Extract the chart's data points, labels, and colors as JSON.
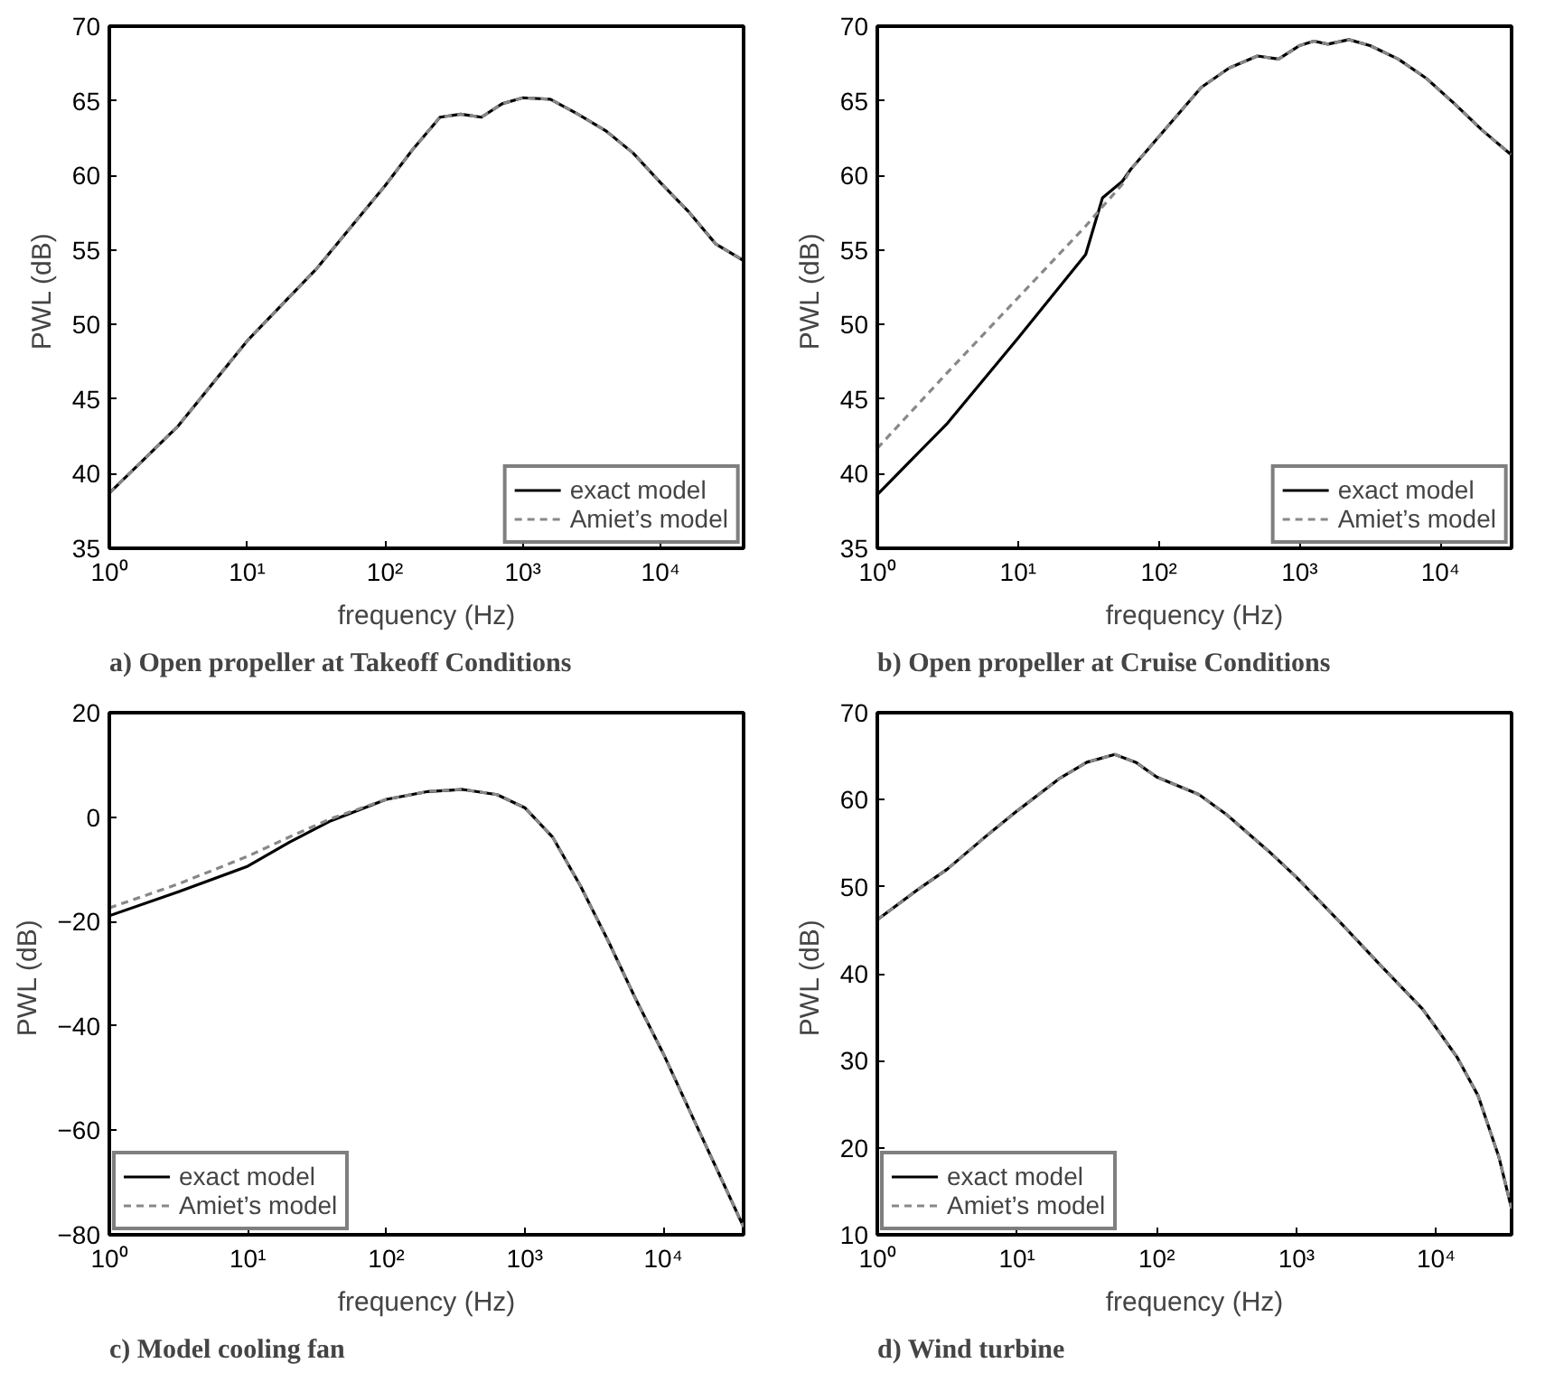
{
  "chart_data": [
    {
      "type": "line",
      "title": "a) Open propeller at Takeoff Conditions",
      "xlabel": "frequency (Hz)",
      "ylabel": "PWL  (dB)",
      "log": "x",
      "grid": false,
      "legend": "bottom right",
      "xlim": [
        1,
        40000
      ],
      "ylim": [
        35,
        70
      ],
      "yticks": [
        35,
        40,
        45,
        50,
        55,
        60,
        65,
        70
      ],
      "xticks": [
        {
          "value": 1,
          "label": "10⁰"
        },
        {
          "value": 10,
          "label": "10¹"
        },
        {
          "value": 100,
          "label": "10²"
        },
        {
          "value": 1000,
          "label": "10³"
        },
        {
          "value": 10000,
          "label": "10⁴"
        }
      ],
      "x": [
        1,
        3.16,
        10,
        31.6,
        100,
        158,
        251,
        355,
        501,
        708,
        1000,
        1585,
        2512,
        3981,
        6310,
        10000,
        15850,
        25120,
        39810
      ],
      "series": [
        {
          "name": "exact model",
          "color": "#000000",
          "line_style": "solid",
          "values": [
            38.7,
            43.2,
            48.9,
            53.7,
            59.3,
            61.7,
            63.9,
            64.1,
            63.9,
            64.8,
            65.2,
            65.1,
            64.1,
            63.0,
            61.5,
            59.5,
            57.6,
            55.4,
            54.3
          ]
        },
        {
          "name": "Amiet’s model",
          "color": "#888888",
          "line_style": "dashed",
          "values": [
            38.7,
            43.2,
            48.9,
            53.7,
            59.3,
            61.7,
            63.9,
            64.1,
            63.9,
            64.8,
            65.2,
            65.1,
            64.1,
            63.0,
            61.5,
            59.5,
            57.6,
            55.4,
            54.3
          ]
        }
      ]
    },
    {
      "type": "line",
      "title": "b) Open propeller at Cruise Conditions",
      "xlabel": "frequency (Hz)",
      "ylabel": "PWL  (dB)",
      "log": "x",
      "grid": false,
      "legend": "bottom right",
      "xlim": [
        1,
        32000
      ],
      "ylim": [
        35,
        70
      ],
      "yticks": [
        35,
        40,
        45,
        50,
        55,
        60,
        65,
        70
      ],
      "xticks": [
        {
          "value": 1,
          "label": "10⁰"
        },
        {
          "value": 10,
          "label": "10¹"
        },
        {
          "value": 100,
          "label": "10²"
        },
        {
          "value": 1000,
          "label": "10³"
        },
        {
          "value": 10000,
          "label": "10⁴"
        }
      ],
      "x": [
        1,
        3.16,
        10,
        30.2,
        39.8,
        55,
        63.1,
        100,
        200,
        316,
        501,
        708,
        1000,
        1259,
        1585,
        2239,
        3162,
        5012,
        7943,
        12590,
        19950,
        31620
      ],
      "series": [
        {
          "name": "exact model",
          "color": "#000000",
          "line_style": "solid",
          "values": [
            38.6,
            43.4,
            49.1,
            54.7,
            58.5,
            59.6,
            60.4,
            62.6,
            65.9,
            67.2,
            68.0,
            67.8,
            68.7,
            69.0,
            68.8,
            69.1,
            68.7,
            67.8,
            66.5,
            64.8,
            63.0,
            61.4
          ]
        },
        {
          "name": "Amiet’s model",
          "color": "#888888",
          "line_style": "dashed",
          "values": [
            41.7,
            46.8,
            51.8,
            56.6,
            57.9,
            59.4,
            60.4,
            62.6,
            65.9,
            67.2,
            68.0,
            67.8,
            68.7,
            69.0,
            68.8,
            69.1,
            68.7,
            67.8,
            66.5,
            64.8,
            63.0,
            61.4
          ]
        }
      ]
    },
    {
      "type": "line",
      "title": "c) Model cooling fan",
      "xlabel": "frequency (Hz)",
      "ylabel": "PWL  (dB)",
      "log": "x",
      "grid": false,
      "legend": "bottom left",
      "xlim": [
        1,
        38000
      ],
      "ylim": [
        -80,
        20
      ],
      "yticks": [
        {
          "value": -80,
          "label": "−80"
        },
        {
          "value": -60,
          "label": "−60"
        },
        {
          "value": -40,
          "label": "−40"
        },
        {
          "value": -20,
          "label": "−20"
        },
        0,
        20
      ],
      "xticks": [
        {
          "value": 1,
          "label": "10⁰"
        },
        {
          "value": 10,
          "label": "10¹"
        },
        {
          "value": 100,
          "label": "10²"
        },
        {
          "value": 1000,
          "label": "10³"
        },
        {
          "value": 10000,
          "label": "10⁴"
        }
      ],
      "x": [
        1,
        3.16,
        10,
        20,
        39.8,
        100,
        200,
        355,
        631,
        1000,
        1585,
        2512,
        3981,
        6310,
        10000,
        15850,
        25120,
        38000
      ],
      "series": [
        {
          "name": "exact model",
          "color": "#000000",
          "line_style": "solid",
          "values": [
            -18.9,
            -14.3,
            -9.4,
            -4.8,
            -0.7,
            3.4,
            4.9,
            5.3,
            4.3,
            1.8,
            -3.8,
            -13.1,
            -23.6,
            -34.8,
            -45.3,
            -56.8,
            -68.2,
            -78.5
          ]
        },
        {
          "name": "Amiet’s model",
          "color": "#888888",
          "line_style": "dashed",
          "values": [
            -17.4,
            -12.8,
            -7.5,
            -3.8,
            -0.3,
            3.4,
            4.9,
            5.3,
            4.3,
            1.8,
            -3.8,
            -13.1,
            -23.6,
            -34.8,
            -45.3,
            -56.8,
            -68.2,
            -78.5
          ]
        }
      ]
    },
    {
      "type": "line",
      "title": "d) Wind turbine",
      "xlabel": "frequency (Hz)",
      "ylabel": "PWL  (dB)",
      "log": "x",
      "grid": false,
      "legend": "bottom left",
      "xlim": [
        1,
        34670
      ],
      "ylim": [
        10,
        70
      ],
      "yticks": [
        10,
        20,
        30,
        40,
        50,
        60,
        70
      ],
      "xticks": [
        {
          "value": 1,
          "label": "10⁰"
        },
        {
          "value": 10,
          "label": "10¹"
        },
        {
          "value": 100,
          "label": "10²"
        },
        {
          "value": 1000,
          "label": "10³"
        },
        {
          "value": 10000,
          "label": "10⁴"
        }
      ],
      "x": [
        1,
        2,
        3.16,
        6.31,
        10,
        20,
        31.6,
        50.1,
        70.8,
        100,
        200,
        316,
        631,
        1000,
        2000,
        3981,
        7943,
        10000,
        14130,
        19950,
        28180,
        34670
      ],
      "series": [
        {
          "name": "exact model",
          "color": "#000000",
          "line_style": "solid",
          "values": [
            46.2,
            49.8,
            52.0,
            56.1,
            58.7,
            62.4,
            64.3,
            65.2,
            64.3,
            62.6,
            60.6,
            58.3,
            54.1,
            51.1,
            46.1,
            41.0,
            36.0,
            33.8,
            30.4,
            26.0,
            18.9,
            13.0
          ]
        },
        {
          "name": "Amiet’s model",
          "color": "#888888",
          "line_style": "dashed",
          "values": [
            46.2,
            49.8,
            52.0,
            56.1,
            58.7,
            62.4,
            64.3,
            65.2,
            64.3,
            62.6,
            60.6,
            58.3,
            54.1,
            51.1,
            46.1,
            41.0,
            36.0,
            33.8,
            30.4,
            26.0,
            18.9,
            13.0
          ]
        }
      ]
    }
  ]
}
